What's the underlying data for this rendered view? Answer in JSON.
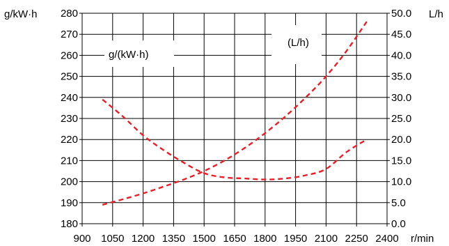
{
  "chart_data": {
    "type": "line",
    "x": {
      "unit": "r/min",
      "ticks": [
        900,
        1050,
        1200,
        1350,
        1500,
        1650,
        1800,
        1950,
        2100,
        2250,
        2400
      ],
      "range": [
        900,
        2400
      ]
    },
    "y_left": {
      "unit": "g/kW·h",
      "ticks": [
        180,
        190,
        200,
        210,
        220,
        230,
        240,
        250,
        260,
        270,
        280
      ],
      "range": [
        180,
        280
      ]
    },
    "y_right": {
      "unit": "L/h",
      "ticks": [
        "0.0",
        "5.0",
        "10.0",
        "15.0",
        "20.0",
        "25.0",
        "30.0",
        "35.0",
        "40.0",
        "45.0",
        "50.0"
      ],
      "range": [
        0,
        50
      ]
    },
    "grid": {
      "vertical": true,
      "horizontal": true
    },
    "series": [
      {
        "name": "g/(kW·h)",
        "axis": "left",
        "color": "#ee1c25",
        "style": "dashed",
        "x": [
          1000,
          1100,
          1200,
          1300,
          1400,
          1500,
          1600,
          1700,
          1800,
          1900,
          2000,
          2100,
          2200,
          2300
        ],
        "y": [
          239,
          231,
          222,
          215,
          209,
          204,
          202,
          201.5,
          201,
          201.5,
          203,
          206,
          214,
          220
        ]
      },
      {
        "name": "(L/h)",
        "axis": "right",
        "color": "#ee1c25",
        "style": "dashed",
        "x": [
          1000,
          1100,
          1200,
          1300,
          1400,
          1500,
          1600,
          1700,
          1800,
          1900,
          2000,
          2100,
          2200,
          2300
        ],
        "y": [
          4.5,
          5.8,
          7.2,
          8.8,
          10.5,
          12.5,
          15.0,
          18.0,
          21.5,
          25.5,
          30.0,
          35.0,
          41.0,
          48.0
        ]
      }
    ]
  },
  "colors": {
    "series": "#ee1c25",
    "grid": "#000000",
    "background": "#ffffff"
  }
}
